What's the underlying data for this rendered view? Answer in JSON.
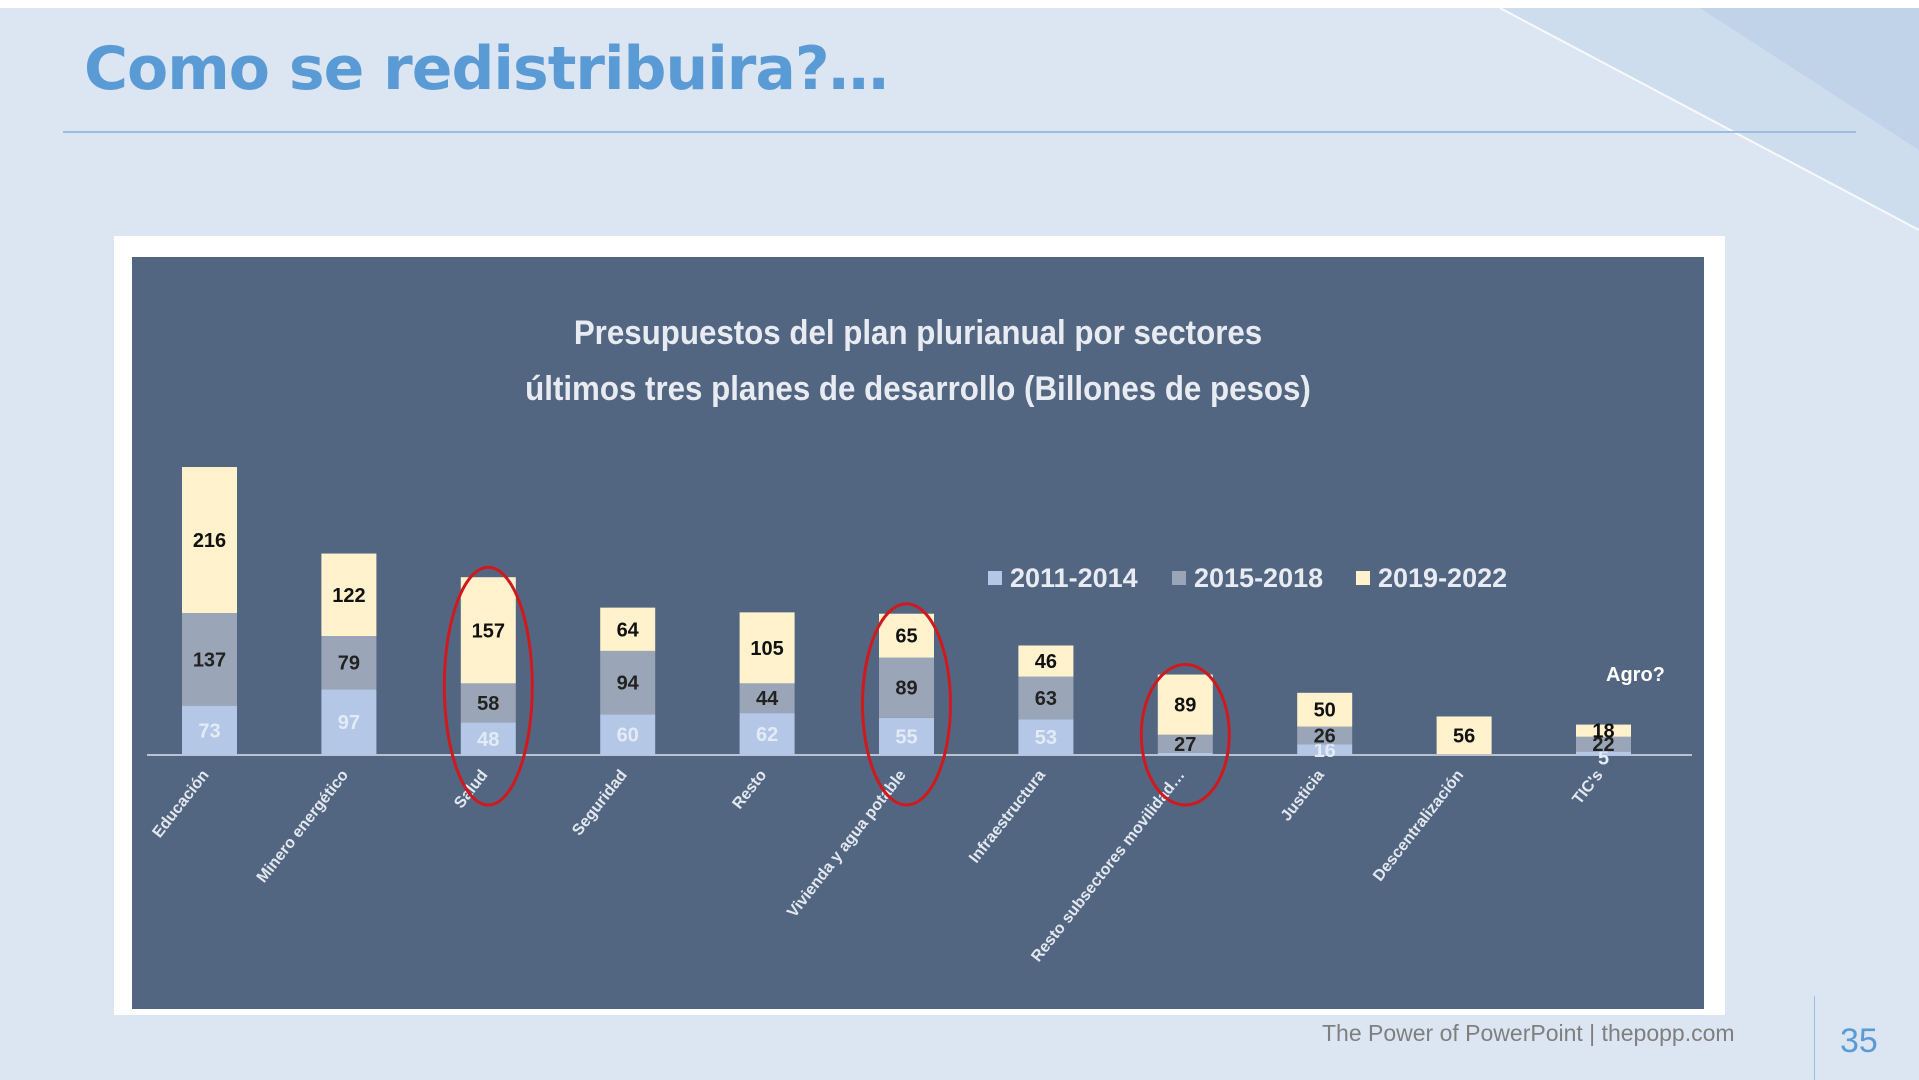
{
  "slide": {
    "title": "Como se redistribuira?…",
    "footer": "The Power of PowerPoint | thepopp.com",
    "page_number": "35",
    "annotation": "Agro?"
  },
  "colors": {
    "accent": "#5b9bd5",
    "chart_bg": "#536681",
    "series_2011": "#b4c7e7",
    "series_2015": "#9aa6b8",
    "series_2019": "#fff2cc",
    "circle": "#d0191d"
  },
  "chart_data": {
    "type": "bar",
    "stacked": true,
    "title": "Presupuestos del plan plurianual por sectores",
    "subtitle": "últimos tres planes de desarrollo (Billones de pesos)",
    "legend_position": "right",
    "categories": [
      "Educación",
      "Minero energético",
      "Salud",
      "Seguridad",
      "Resto",
      "Vivienda y agua potable",
      "Infraestructura",
      "Resto subsectores movilidad…",
      "Justicia",
      "Descentralización",
      "TIC's"
    ],
    "series": [
      {
        "name": "2011-2014",
        "values": [
          73,
          97,
          48,
          60,
          62,
          55,
          53,
          3,
          16,
          0,
          5
        ],
        "labels": [
          "73",
          "97",
          "48",
          "60",
          "62",
          "55",
          "53",
          "",
          "16",
          "",
          "5"
        ]
      },
      {
        "name": "2015-2018",
        "values": [
          137,
          79,
          58,
          94,
          44,
          89,
          63,
          27,
          26,
          1,
          22
        ],
        "labels": [
          "137",
          "79",
          "58",
          "94",
          "44",
          "89",
          "63",
          "27",
          "26",
          "",
          "22"
        ]
      },
      {
        "name": "2019-2022",
        "values": [
          216,
          122,
          157,
          64,
          105,
          65,
          46,
          89,
          50,
          56,
          18
        ],
        "labels": [
          "216",
          "122",
          "157",
          "64",
          "105",
          "65",
          "46",
          "89",
          "50",
          "56",
          "18"
        ]
      }
    ],
    "highlighted_categories": [
      "Salud",
      "Vivienda y agua potable",
      "Resto subsectores movilidad…"
    ]
  }
}
